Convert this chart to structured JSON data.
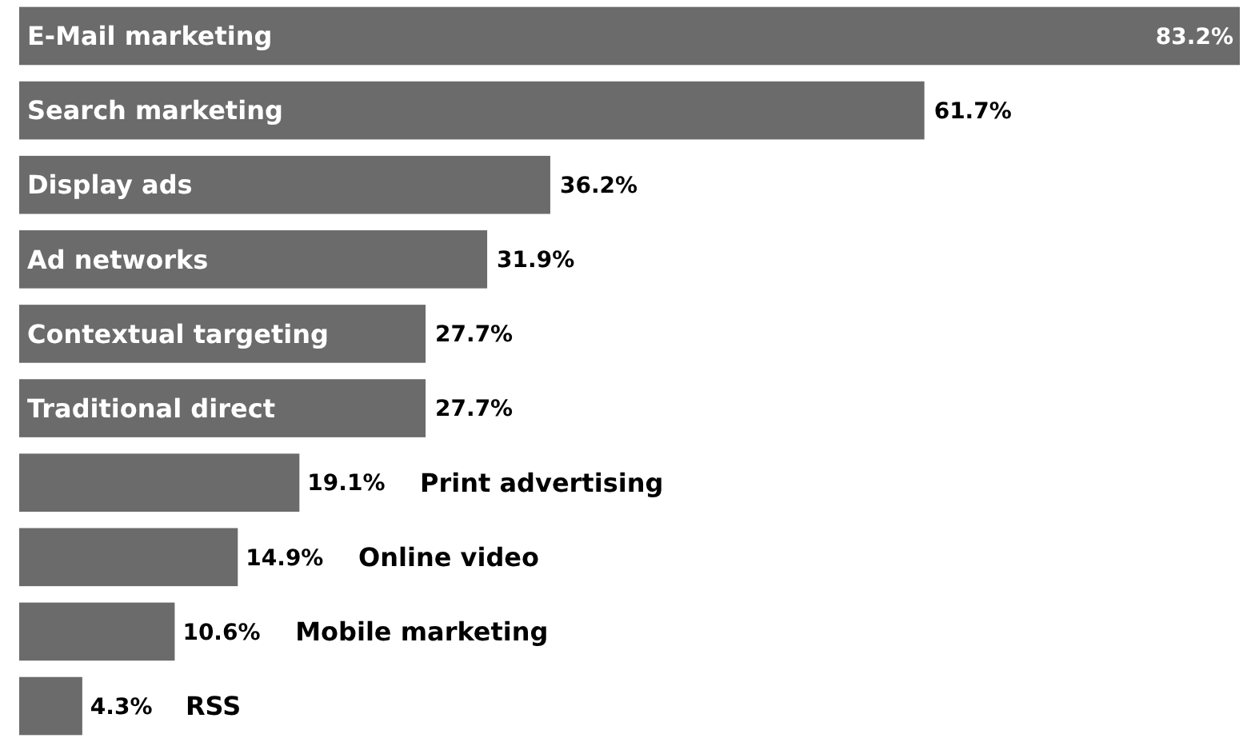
{
  "chart_data": {
    "type": "bar",
    "orientation": "horizontal",
    "categories": [
      "E-Mail marketing",
      "Search marketing",
      "Display ads",
      "Ad networks",
      "Contextual targeting",
      "Traditional direct",
      "Print advertising",
      "Online video",
      "Mobile marketing",
      "RSS"
    ],
    "values": [
      83.2,
      61.7,
      36.2,
      31.9,
      27.7,
      27.7,
      19.1,
      14.9,
      10.6,
      4.3
    ],
    "value_labels": [
      "83.2%",
      "61.7%",
      "36.2%",
      "31.9%",
      "27.7%",
      "27.7%",
      "19.1%",
      "14.9%",
      "10.6%",
      "4.3%"
    ],
    "color": "#6b6b6b"
  }
}
